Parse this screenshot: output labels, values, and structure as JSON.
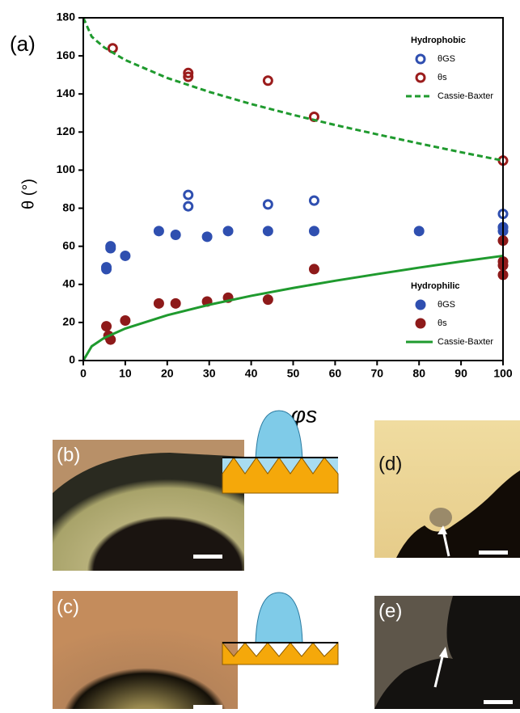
{
  "chart_data": {
    "type": "scatter",
    "annotation": "(a)",
    "x_label": "φs",
    "y_label": "θ (°)",
    "xlim": [
      0,
      100
    ],
    "ylim": [
      0,
      180
    ],
    "xticks": [
      0,
      10,
      20,
      30,
      40,
      50,
      60,
      70,
      80,
      90,
      100
    ],
    "yticks": [
      0,
      20,
      40,
      60,
      80,
      100,
      120,
      140,
      160,
      180
    ],
    "groups": [
      {
        "title": "Hydrophobic",
        "series": [
          {
            "name": "θGS",
            "color": "#2f4fb0",
            "marker": "open",
            "x": [
              25,
              25,
              44,
              55,
              100,
              100
            ],
            "values": [
              87,
              81,
              82,
              84,
              77,
              70
            ]
          },
          {
            "name": "θs",
            "color": "#9b1c1c",
            "marker": "open",
            "x": [
              7,
              25,
              25,
              44,
              55,
              100
            ],
            "values": [
              164,
              151,
              149,
              147,
              128,
              105
            ]
          },
          {
            "name": "Cassie-Baxter",
            "color": "#1f9a2e",
            "marker": "dashed",
            "x": [
              0,
              2,
              5,
              10,
              20,
              30,
              40,
              50,
              60,
              70,
              80,
              90,
              100
            ],
            "values": [
              180,
              170.1,
              164.4,
              157.8,
              148.4,
              141.1,
              134.7,
              129.0,
              123.7,
              118.8,
              114.0,
              109.4,
              105
            ]
          }
        ]
      },
      {
        "title": "Hydrophilic",
        "series": [
          {
            "name": "θGS",
            "color": "#2f4fb0",
            "marker": "filled",
            "x": [
              5.5,
              5.5,
              6.5,
              6.5,
              10,
              18,
              22,
              29.5,
              34.5,
              44,
              55,
              80,
              100,
              100
            ],
            "values": [
              48,
              49,
              59,
              60,
              55,
              68,
              66,
              65,
              68,
              68,
              68,
              68,
              68,
              70
            ]
          },
          {
            "name": "θs",
            "color": "#8e1a1a",
            "marker": "filled",
            "x": [
              5.5,
              6,
              6.5,
              10,
              18,
              22,
              29.5,
              34.5,
              44,
              55,
              100,
              100,
              100,
              100
            ],
            "values": [
              18,
              13,
              11,
              21,
              30,
              30,
              31,
              33,
              32,
              48,
              63,
              52,
              50,
              45
            ]
          },
          {
            "name": "Cassie-Baxter",
            "color": "#1f9a2e",
            "marker": "solid",
            "x": [
              0,
              2,
              5,
              10,
              20,
              30,
              40,
              50,
              60,
              70,
              80,
              90,
              100
            ],
            "values": [
              0,
              7.5,
              11.9,
              16.8,
              23.8,
              29.3,
              34.0,
              38.1,
              41.9,
              45.4,
              48.8,
              52.0,
              55
            ]
          }
        ]
      }
    ]
  },
  "panels": {
    "b": "(b)",
    "c": "(c)",
    "d": "(d)",
    "e": "(e)"
  }
}
